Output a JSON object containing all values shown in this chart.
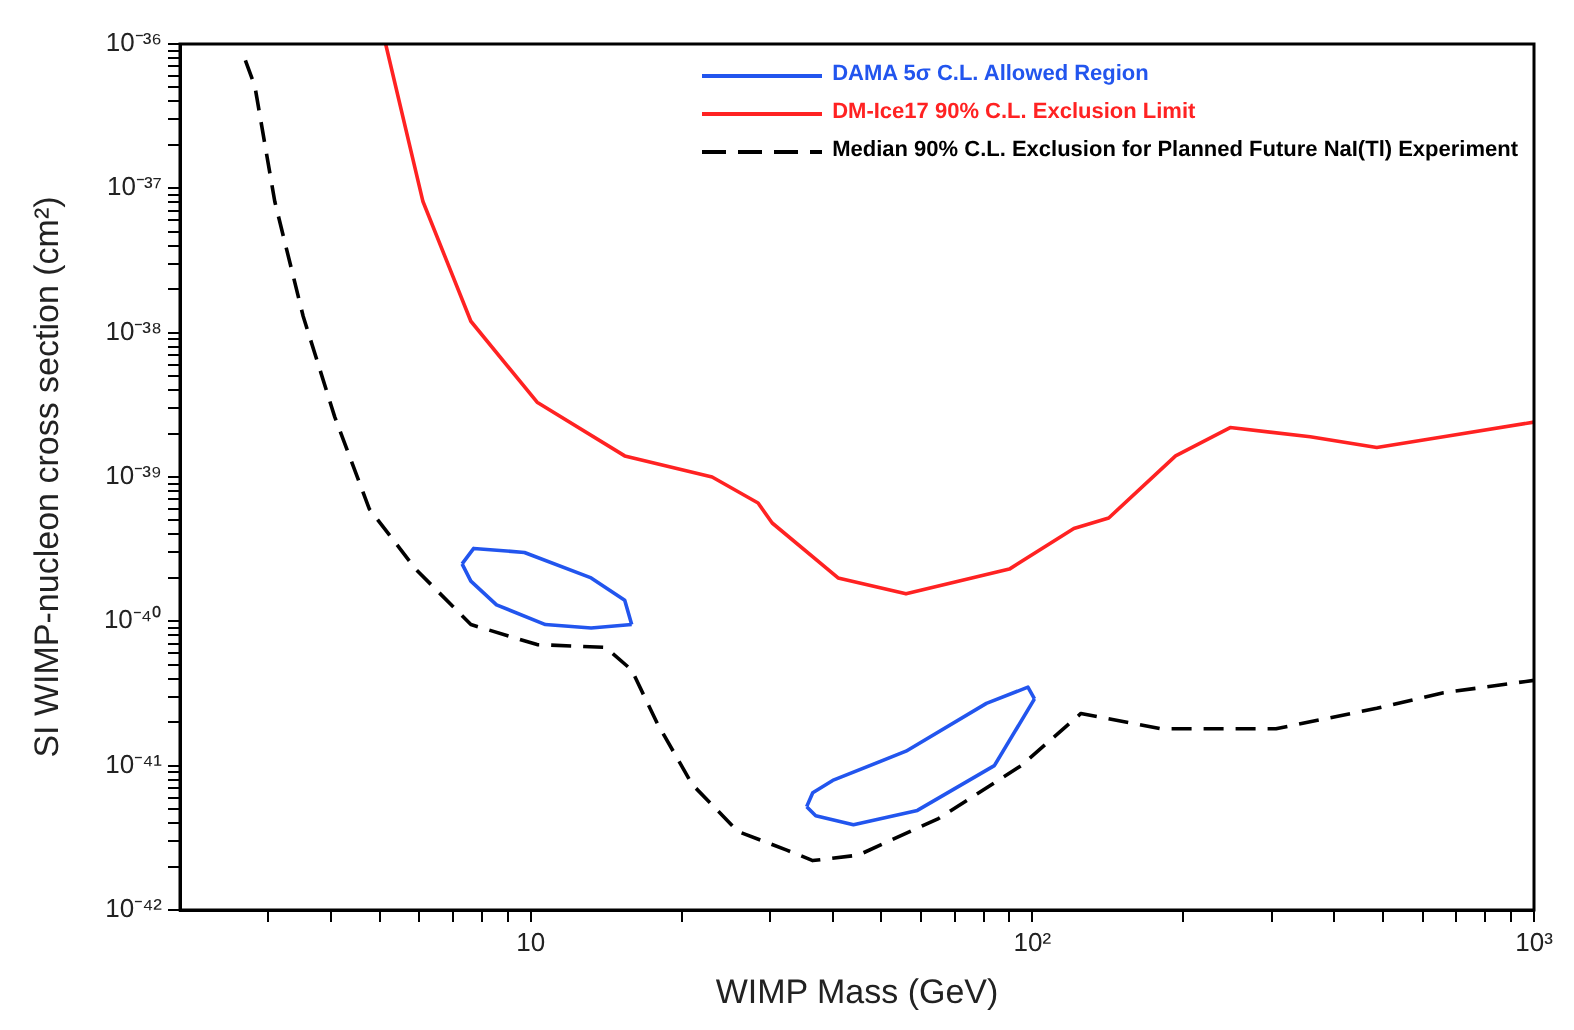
{
  "chart_data": {
    "type": "line",
    "xlabel": "WIMP Mass (GeV)",
    "ylabel": "SI WIMP-nucleon cross section (cm²)",
    "log": "xy",
    "grid": false,
    "legend": "top right",
    "marker": "none",
    "xlim": [
      2,
      1000
    ],
    "ylim": [
      1e-42,
      1e-36
    ],
    "xticks": [
      {
        "value": 3,
        "label": null
      },
      {
        "value": 4,
        "label": null
      },
      {
        "value": 5,
        "label": null
      },
      {
        "value": 6,
        "label": null
      },
      {
        "value": 7,
        "label": null
      },
      {
        "value": 8,
        "label": null
      },
      {
        "value": 9,
        "label": null
      },
      {
        "value": 10,
        "label": "10"
      },
      {
        "value": 20,
        "label": null
      },
      {
        "value": 30,
        "label": null
      },
      {
        "value": 40,
        "label": null
      },
      {
        "value": 50,
        "label": null
      },
      {
        "value": 60,
        "label": null
      },
      {
        "value": 70,
        "label": null
      },
      {
        "value": 80,
        "label": null
      },
      {
        "value": 90,
        "label": null
      },
      {
        "value": 100,
        "label": "10²"
      },
      {
        "value": 200,
        "label": null
      },
      {
        "value": 300,
        "label": null
      },
      {
        "value": 400,
        "label": null
      },
      {
        "value": 500,
        "label": null
      },
      {
        "value": 600,
        "label": null
      },
      {
        "value": 700,
        "label": null
      },
      {
        "value": 800,
        "label": null
      },
      {
        "value": 900,
        "label": null
      },
      {
        "value": 1000,
        "label": "10³"
      }
    ],
    "yticks": [
      {
        "value": 1e-42,
        "label": "10⁻⁴²"
      },
      {
        "value": 2e-42,
        "label": null
      },
      {
        "value": 3e-42,
        "label": null
      },
      {
        "value": 4e-42,
        "label": null
      },
      {
        "value": 5e-42,
        "label": null
      },
      {
        "value": 6e-42,
        "label": null
      },
      {
        "value": 7e-42,
        "label": null
      },
      {
        "value": 8e-42,
        "label": null
      },
      {
        "value": 9e-42,
        "label": null
      },
      {
        "value": 1e-41,
        "label": "10⁻⁴¹"
      },
      {
        "value": 2e-41,
        "label": null
      },
      {
        "value": 3e-41,
        "label": null
      },
      {
        "value": 4e-41,
        "label": null
      },
      {
        "value": 5e-41,
        "label": null
      },
      {
        "value": 6e-41,
        "label": null
      },
      {
        "value": 7e-41,
        "label": null
      },
      {
        "value": 8e-41,
        "label": null
      },
      {
        "value": 9e-41,
        "label": null
      },
      {
        "value": 1e-40,
        "label": "10⁻⁴⁰"
      },
      {
        "value": 2e-40,
        "label": null
      },
      {
        "value": 3e-40,
        "label": null
      },
      {
        "value": 4e-40,
        "label": null
      },
      {
        "value": 5e-40,
        "label": null
      },
      {
        "value": 6e-40,
        "label": null
      },
      {
        "value": 7e-40,
        "label": null
      },
      {
        "value": 8e-40,
        "label": null
      },
      {
        "value": 9e-40,
        "label": null
      },
      {
        "value": 1e-39,
        "label": "10⁻³⁹"
      },
      {
        "value": 2e-39,
        "label": null
      },
      {
        "value": 3e-39,
        "label": null
      },
      {
        "value": 4e-39,
        "label": null
      },
      {
        "value": 5e-39,
        "label": null
      },
      {
        "value": 6e-39,
        "label": null
      },
      {
        "value": 7e-39,
        "label": null
      },
      {
        "value": 8e-39,
        "label": null
      },
      {
        "value": 9e-39,
        "label": null
      },
      {
        "value": 1e-38,
        "label": "10⁻³⁸"
      },
      {
        "value": 2e-38,
        "label": null
      },
      {
        "value": 3e-38,
        "label": null
      },
      {
        "value": 4e-38,
        "label": null
      },
      {
        "value": 5e-38,
        "label": null
      },
      {
        "value": 6e-38,
        "label": null
      },
      {
        "value": 7e-38,
        "label": null
      },
      {
        "value": 8e-38,
        "label": null
      },
      {
        "value": 9e-38,
        "label": null
      },
      {
        "value": 1e-37,
        "label": "10⁻³⁷"
      },
      {
        "value": 2e-37,
        "label": null
      },
      {
        "value": 3e-37,
        "label": null
      },
      {
        "value": 4e-37,
        "label": null
      },
      {
        "value": 5e-37,
        "label": null
      },
      {
        "value": 6e-37,
        "label": null
      },
      {
        "value": 7e-37,
        "label": null
      },
      {
        "value": 8e-37,
        "label": null
      },
      {
        "value": 9e-37,
        "label": null
      },
      {
        "value": 1e-36,
        "label": "10⁻³⁶"
      }
    ],
    "series": [
      {
        "name": "DAMA 5σ C.L. Allowed Region",
        "color": "#2255ee",
        "line_style": "solid",
        "x": [
          7.3,
          7.7,
          9.72,
          13.2,
          15.4,
          15.9
        ],
        "values": [
          2.5e-40,
          3.2e-40,
          3e-40,
          2e-40,
          1.4e-40,
          9.5e-41
        ]
      },
      {
        "color": "#2255ee",
        "line_style": "solid",
        "x": [
          7.3,
          7.6,
          8.55,
          10.7,
          13.2,
          15.9
        ],
        "values": [
          2.5e-40,
          1.9e-40,
          1.3e-40,
          9.5e-41,
          9e-41,
          9.5e-41
        ]
      },
      {
        "color": "#2255ee",
        "line_style": "solid",
        "x": [
          35.5,
          36.5,
          40,
          56,
          81,
          98,
          101
        ],
        "values": [
          5.2e-42,
          6.5e-42,
          7.9e-42,
          1.26e-41,
          2.7e-41,
          3.5e-41,
          2.9e-41
        ]
      },
      {
        "color": "#2255ee",
        "line_style": "solid",
        "x": [
          35.5,
          37,
          44,
          59,
          84,
          101
        ],
        "values": [
          5.2e-42,
          4.5e-42,
          3.9e-42,
          4.9e-42,
          1e-41,
          2.9e-41
        ]
      },
      {
        "name": "DM-Ice17 90% C.L. Exclusion Limit",
        "color": "#ff2222",
        "line_style": "solid",
        "x": [
          5.14,
          6.1,
          7.6,
          10.3,
          15.4,
          23,
          28.4,
          30.3,
          41,
          56,
          90,
          121,
          142,
          193,
          248,
          358,
          486,
          660,
          1000
        ],
        "values": [
          1e-36,
          8.1e-38,
          1.2e-38,
          3.3e-39,
          1.4e-39,
          1e-39,
          6.6e-40,
          4.8e-40,
          2e-40,
          1.55e-40,
          2.3e-40,
          4.4e-40,
          5.2e-40,
          1.4e-39,
          2.2e-39,
          1.9e-39,
          1.6e-39,
          1.9e-39,
          2.4e-39
        ]
      },
      {
        "name": "Median 90% C.L. Exclusion for Planned Future NaI(Tl) Experiment",
        "color": "#000000",
        "line_style": "dashed",
        "x": [
          2.7,
          2.82,
          3.09,
          3.52,
          4.07,
          4.77,
          5.9,
          7.6,
          10.3,
          14.1,
          15.9,
          17.9,
          21,
          25.9,
          32.4,
          36.5,
          45,
          65,
          95,
          125,
          181,
          306,
          486,
          660,
          1000
        ],
        "values": [
          7.7e-37,
          5.1e-37,
          8.1e-38,
          1.3e-38,
          2.6e-39,
          6e-40,
          2.3e-40,
          9.5e-41,
          6.9e-41,
          6.6e-41,
          4.6e-41,
          1.95e-41,
          7.4e-42,
          3.5e-42,
          2.6e-42,
          2.2e-42,
          2.4e-42,
          4.3e-42,
          1e-41,
          2.3e-41,
          1.8e-41,
          1.8e-41,
          2.5e-41,
          3.2e-41,
          3.9e-41
        ]
      }
    ]
  }
}
